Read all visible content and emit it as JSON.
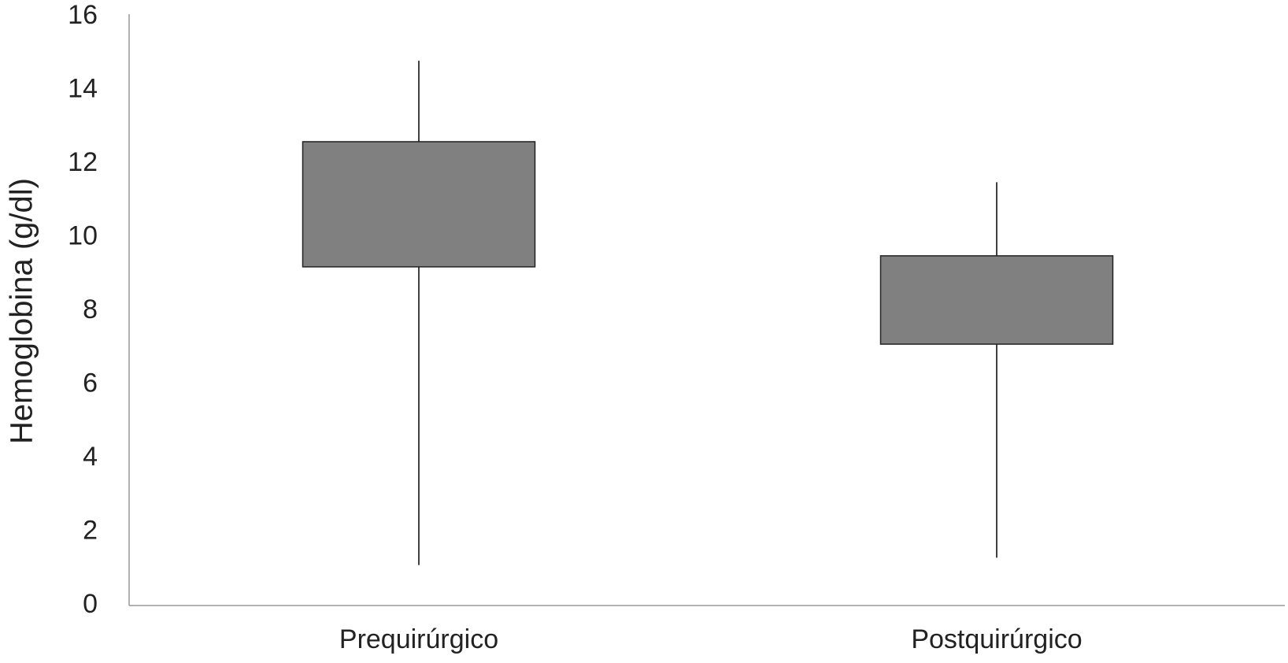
{
  "chart_data": {
    "type": "box",
    "y_label": "Hemoglobina (g/dl)",
    "categories": [
      "Prequirúrgico",
      "Postquirúrgico"
    ],
    "min": [
      1.1,
      1.3
    ],
    "q1": [
      9.2,
      7.1
    ],
    "q3": [
      12.6,
      9.5
    ],
    "max": [
      14.8,
      11.5
    ],
    "color": "#808080",
    "ylim": [
      0,
      16
    ],
    "yticks": [
      0,
      2,
      4,
      6,
      8,
      10,
      12,
      14,
      16
    ],
    "grid": false
  }
}
